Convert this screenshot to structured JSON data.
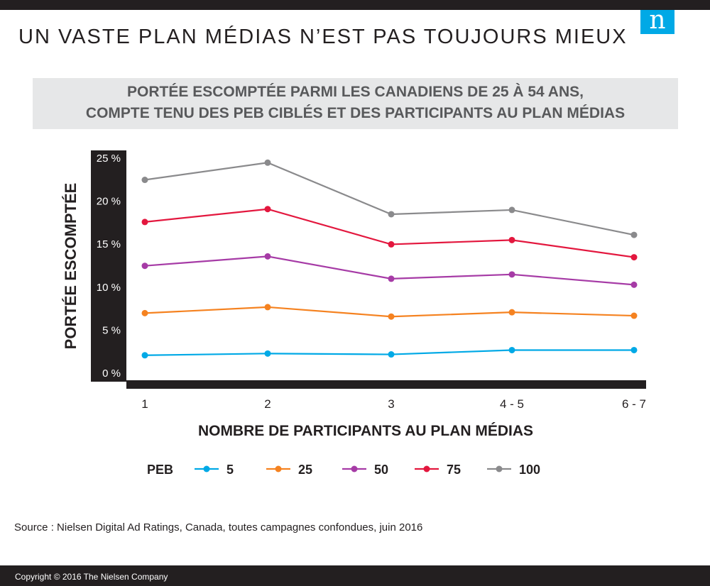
{
  "header": {
    "title": "UN VASTE PLAN MÉDIAS N’EST PAS TOUJOURS MIEUX",
    "logo_text": "n",
    "subtitle_line1": "PORTÉE ESCOMPTÉE PARMI LES CANADIENS DE 25 À 54 ANS,",
    "subtitle_line2": "COMPTE TENU DES PEB CIBLÉS ET DES PARTICIPANTS AU PLAN MÉDIAS"
  },
  "chart_data": {
    "type": "line",
    "x": [
      "1",
      "2",
      "3",
      "4 - 5",
      "6 - 7"
    ],
    "xlabel": "NOMBRE DE PARTICIPANTS AU PLAN MÉDIAS",
    "ylabel": "PORTÉE ESCOMPTÉE",
    "ylim": [
      0,
      25
    ],
    "yticks": [
      0,
      5,
      10,
      15,
      20,
      25
    ],
    "ytick_labels": [
      "0 %",
      "5 %",
      "10 %",
      "15 %",
      "20 %",
      "25 %"
    ],
    "grid": false,
    "legend_title": "PEB",
    "legend_position": "bottom",
    "series": [
      {
        "name": "5",
        "color": "#00a9e6",
        "values": [
          2.0,
          2.2,
          2.1,
          2.6,
          2.6
        ]
      },
      {
        "name": "25",
        "color": "#f58220",
        "values": [
          6.9,
          7.6,
          6.5,
          7.0,
          6.6
        ]
      },
      {
        "name": "50",
        "color": "#a63ba6",
        "values": [
          12.4,
          13.5,
          10.9,
          11.4,
          10.2
        ]
      },
      {
        "name": "75",
        "color": "#e3173e",
        "values": [
          17.5,
          19.0,
          14.9,
          15.4,
          13.4
        ]
      },
      {
        "name": "100",
        "color": "#8a8a8c",
        "values": [
          22.4,
          24.4,
          18.4,
          18.9,
          16.0
        ]
      }
    ]
  },
  "footer": {
    "source": "Source : Nielsen Digital Ad Ratings, Canada, toutes campagnes confondues, juin 2016",
    "copyright": "Copyright © 2016 The Nielsen Company"
  }
}
